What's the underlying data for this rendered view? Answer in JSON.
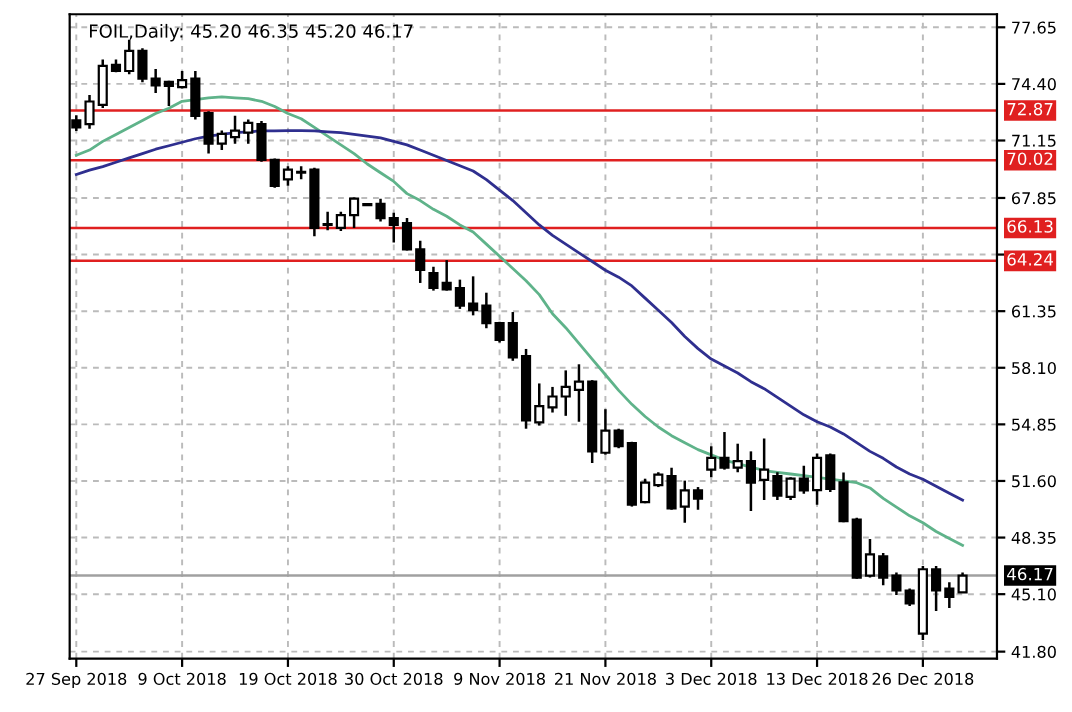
{
  "chart_data": {
    "type": "candlestick",
    "title": "FOIL,Daily: 45.20 46.35 45.20 46.17",
    "categories": [
      "27 Sep 2018",
      null,
      null,
      null,
      null,
      null,
      null,
      null,
      "9 Oct 2018",
      null,
      null,
      null,
      null,
      null,
      null,
      null,
      "19 Oct 2018",
      null,
      null,
      null,
      null,
      null,
      null,
      null,
      "30 Oct 2018",
      null,
      null,
      null,
      null,
      null,
      null,
      null,
      "9 Nov 2018",
      null,
      null,
      null,
      null,
      null,
      null,
      null,
      "21 Nov 2018",
      null,
      null,
      null,
      null,
      null,
      null,
      null,
      "3 Dec 2018",
      null,
      null,
      null,
      null,
      null,
      null,
      null,
      "13 Dec 2018",
      null,
      null,
      null,
      null,
      null,
      null,
      null,
      "26 Dec 2018",
      null,
      null,
      null
    ],
    "ohlc": [
      [
        72.3,
        72.6,
        71.7,
        71.9
      ],
      [
        72.09,
        73.76,
        71.83,
        73.39
      ],
      [
        73.2,
        75.8,
        73.02,
        75.44
      ],
      [
        75.5,
        75.8,
        75.07,
        75.14
      ],
      [
        75.14,
        76.93,
        74.95,
        76.3
      ],
      [
        76.3,
        76.44,
        74.5,
        74.7
      ],
      [
        74.7,
        75.25,
        73.88,
        74.32
      ],
      [
        74.51,
        74.58,
        73.13,
        74.28
      ],
      [
        74.21,
        75.14,
        74.13,
        74.62
      ],
      [
        74.7,
        75.14,
        72.35,
        72.57
      ],
      [
        72.72,
        72.83,
        70.41,
        70.97
      ],
      [
        70.97,
        71.72,
        70.6,
        71.53
      ],
      [
        71.34,
        72.57,
        70.97,
        71.72
      ],
      [
        71.6,
        72.35,
        70.97,
        72.16
      ],
      [
        72.09,
        72.27,
        69.93,
        70.04
      ],
      [
        70.04,
        70.11,
        68.44,
        68.55
      ],
      [
        68.92,
        69.67,
        68.55,
        69.48
      ],
      [
        69.3,
        69.67,
        68.92,
        69.35
      ],
      [
        69.48,
        69.59,
        65.65,
        66.13
      ],
      [
        66.3,
        67.06,
        66.0,
        66.35
      ],
      [
        66.13,
        67.06,
        65.95,
        66.87
      ],
      [
        66.87,
        67.88,
        66.13,
        67.81
      ],
      [
        67.5,
        67.55,
        67.4,
        67.44
      ],
      [
        67.51,
        67.81,
        66.5,
        66.69
      ],
      [
        66.7,
        67.0,
        65.3,
        66.3
      ],
      [
        66.4,
        66.7,
        64.83,
        64.9
      ],
      [
        64.9,
        65.39,
        62.97,
        63.72
      ],
      [
        63.53,
        63.9,
        62.53,
        62.68
      ],
      [
        62.97,
        64.28,
        62.53,
        62.6
      ],
      [
        62.68,
        63.16,
        61.48,
        61.67
      ],
      [
        61.78,
        63.35,
        61.11,
        61.41
      ],
      [
        61.67,
        62.41,
        60.37,
        60.66
      ],
      [
        60.66,
        60.74,
        59.55,
        59.7
      ],
      [
        60.66,
        61.3,
        58.5,
        58.69
      ],
      [
        58.77,
        59.18,
        54.6,
        55.08
      ],
      [
        54.97,
        57.2,
        54.78,
        55.9
      ],
      [
        55.83,
        57.0,
        55.53,
        56.45
      ],
      [
        56.45,
        57.95,
        55.34,
        57.0
      ],
      [
        56.83,
        58.3,
        55.0,
        57.31
      ],
      [
        57.31,
        57.39,
        52.63,
        53.3
      ],
      [
        53.22,
        55.72,
        53.11,
        54.49
      ],
      [
        54.49,
        54.6,
        53.48,
        53.6
      ],
      [
        53.78,
        53.85,
        50.13,
        50.24
      ],
      [
        50.39,
        51.73,
        50.32,
        51.51
      ],
      [
        51.36,
        52.1,
        51.25,
        51.96
      ],
      [
        51.88,
        52.36,
        49.94,
        50.02
      ],
      [
        50.13,
        51.62,
        49.2,
        51.06
      ],
      [
        51.06,
        51.25,
        49.94,
        50.58
      ],
      [
        52.25,
        53.59,
        51.81,
        52.92
      ],
      [
        52.92,
        54.41,
        52.25,
        52.36
      ],
      [
        52.36,
        53.74,
        52.1,
        52.74
      ],
      [
        52.74,
        53.3,
        49.87,
        51.51
      ],
      [
        51.66,
        54.04,
        50.5,
        52.25
      ],
      [
        51.88,
        52.1,
        50.5,
        50.76
      ],
      [
        50.69,
        51.81,
        50.5,
        51.73
      ],
      [
        51.73,
        52.47,
        50.87,
        51.06
      ],
      [
        51.08,
        53.18,
        50.23,
        52.92
      ],
      [
        53.07,
        53.18,
        50.97,
        51.15
      ],
      [
        51.52,
        52.08,
        49.23,
        49.3
      ],
      [
        49.38,
        49.49,
        45.98,
        46.05
      ],
      [
        46.16,
        48.27,
        46.05,
        47.38
      ],
      [
        47.27,
        47.46,
        45.61,
        46.05
      ],
      [
        46.16,
        46.35,
        45.05,
        45.31
      ],
      [
        45.31,
        45.42,
        44.42,
        44.57
      ],
      [
        42.84,
        46.72,
        42.47,
        46.53
      ],
      [
        46.53,
        46.72,
        44.13,
        45.31
      ],
      [
        45.42,
        45.79,
        44.31,
        44.94
      ],
      [
        45.2,
        46.35,
        45.2,
        46.17
      ]
    ],
    "series": [
      {
        "type": "line",
        "color": "#5fb38a",
        "values": [
          70.3,
          70.6,
          71.1,
          71.5,
          71.9,
          72.3,
          72.7,
          73.0,
          73.4,
          73.5,
          73.6,
          73.65,
          73.6,
          73.55,
          73.4,
          73.1,
          72.7,
          72.4,
          71.9,
          71.4,
          70.9,
          70.4,
          69.8,
          69.3,
          68.8,
          68.1,
          67.7,
          67.2,
          66.8,
          66.3,
          65.9,
          65.2,
          64.5,
          63.8,
          63.1,
          62.3,
          61.2,
          60.4,
          59.5,
          58.6,
          57.7,
          56.8,
          56.0,
          55.3,
          54.7,
          54.2,
          53.8,
          53.4,
          53.1,
          52.8,
          52.6,
          52.4,
          52.2,
          52.1,
          52.0,
          51.9,
          51.8,
          51.7,
          51.6,
          51.5,
          51.2,
          50.6,
          50.1,
          49.6,
          49.2,
          48.7,
          48.3,
          47.9
        ]
      },
      {
        "type": "line",
        "color": "#2f2f8f",
        "values": [
          69.2,
          69.45,
          69.65,
          69.9,
          70.15,
          70.4,
          70.65,
          70.85,
          71.05,
          71.25,
          71.4,
          71.5,
          71.6,
          71.65,
          71.7,
          71.7,
          71.72,
          71.72,
          71.7,
          71.65,
          71.6,
          71.5,
          71.4,
          71.3,
          71.1,
          70.9,
          70.6,
          70.3,
          70.0,
          69.7,
          69.4,
          68.9,
          68.3,
          67.7,
          67.0,
          66.3,
          65.7,
          65.2,
          64.7,
          64.2,
          63.7,
          63.3,
          62.8,
          62.1,
          61.4,
          60.7,
          59.9,
          59.2,
          58.6,
          58.2,
          57.8,
          57.3,
          56.9,
          56.4,
          55.9,
          55.4,
          55.0,
          54.7,
          54.3,
          53.8,
          53.3,
          52.9,
          52.4,
          52.0,
          51.7,
          51.3,
          50.9,
          50.5
        ]
      }
    ],
    "ref_lines": [
      {
        "axis": "y",
        "value": 72.87,
        "label": "72.87",
        "color": "#e02020"
      },
      {
        "axis": "y",
        "value": 70.02,
        "label": "70.02",
        "color": "#e02020"
      },
      {
        "axis": "y",
        "value": 66.13,
        "label": "66.13",
        "color": "#e02020"
      },
      {
        "axis": "y",
        "value": 64.24,
        "label": "64.24",
        "color": "#e02020"
      },
      {
        "axis": "y",
        "value": 46.17,
        "label": "46.17",
        "color": "#a0a0a0"
      }
    ],
    "ylim": [
      41.4,
      78.4
    ],
    "yticks": [
      {
        "value": 41.8,
        "label": "41.80"
      },
      {
        "value": 45.1,
        "label": "45.10"
      },
      48.35,
      {
        "value": 51.6,
        "label": "51.60"
      },
      54.85,
      {
        "value": 58.1,
        "label": "58.10"
      },
      61.35,
      {
        "value": 64.6,
        "label": null
      },
      67.85,
      71.15,
      {
        "value": 74.4,
        "label": "74.40"
      },
      77.65
    ],
    "grid": true
  }
}
